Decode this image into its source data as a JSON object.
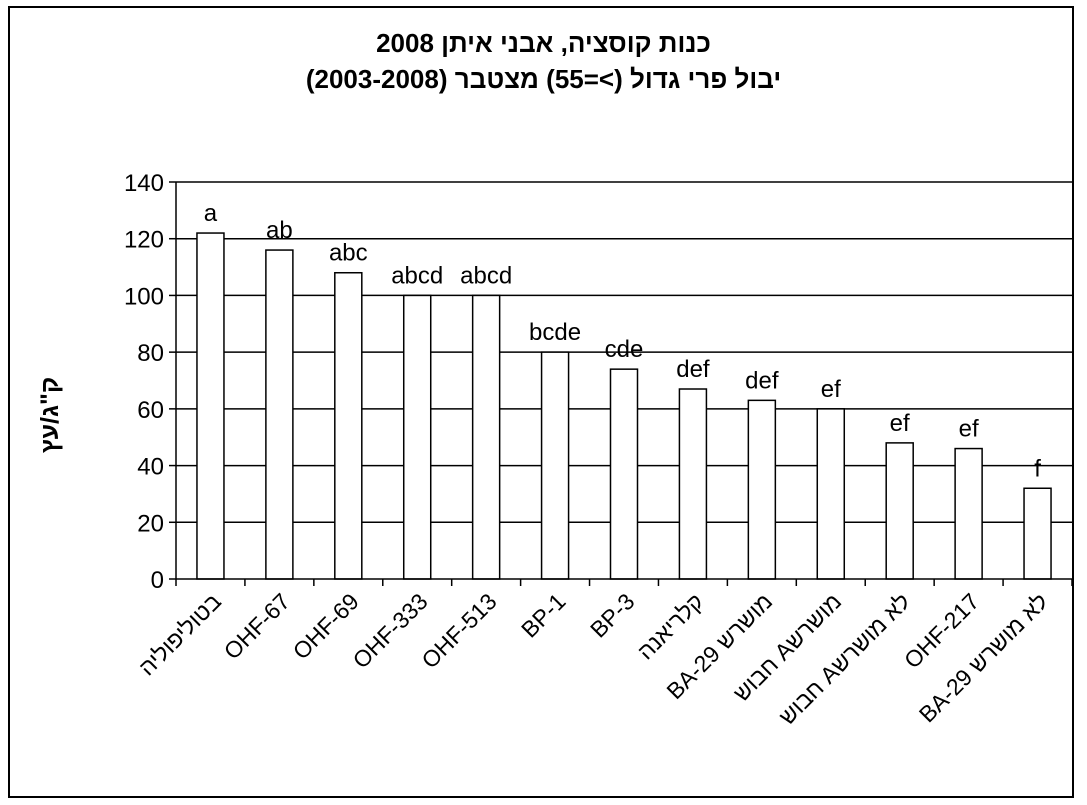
{
  "chart_data": {
    "type": "bar",
    "title": "כנות קוסציה, אבני איתן 2008",
    "subtitle": "יבול פרי גדול (>=55) מצטבר (2003-2008)",
    "ylabel": "ק\"ג/עץ",
    "xlabel": "",
    "ylim": [
      0,
      140
    ],
    "yticks": [
      0,
      20,
      40,
      60,
      80,
      100,
      120,
      140
    ],
    "grid": true,
    "bar_color": "#ffffff",
    "bar_edge_color": "#000000",
    "categories": [
      "בטוליפוליה",
      "OHF-67",
      "OHF-69",
      "OHF-333",
      "OHF-513",
      "BP-1",
      "BP-3",
      "קלריאנה",
      "BA-29 מושרש",
      "חבוש Aמושרש",
      "חבוש Aלא מושרש",
      "OHF-217",
      "BA-29 לא מושרש"
    ],
    "values": [
      122,
      116,
      108,
      100,
      100,
      80,
      74,
      67,
      63,
      60,
      48,
      46,
      32
    ],
    "significance_labels": [
      "a",
      "ab",
      "abc",
      "abcd",
      "abcd",
      "bcde",
      "cde",
      "def",
      "def",
      "ef",
      "ef",
      "ef",
      "f"
    ]
  }
}
